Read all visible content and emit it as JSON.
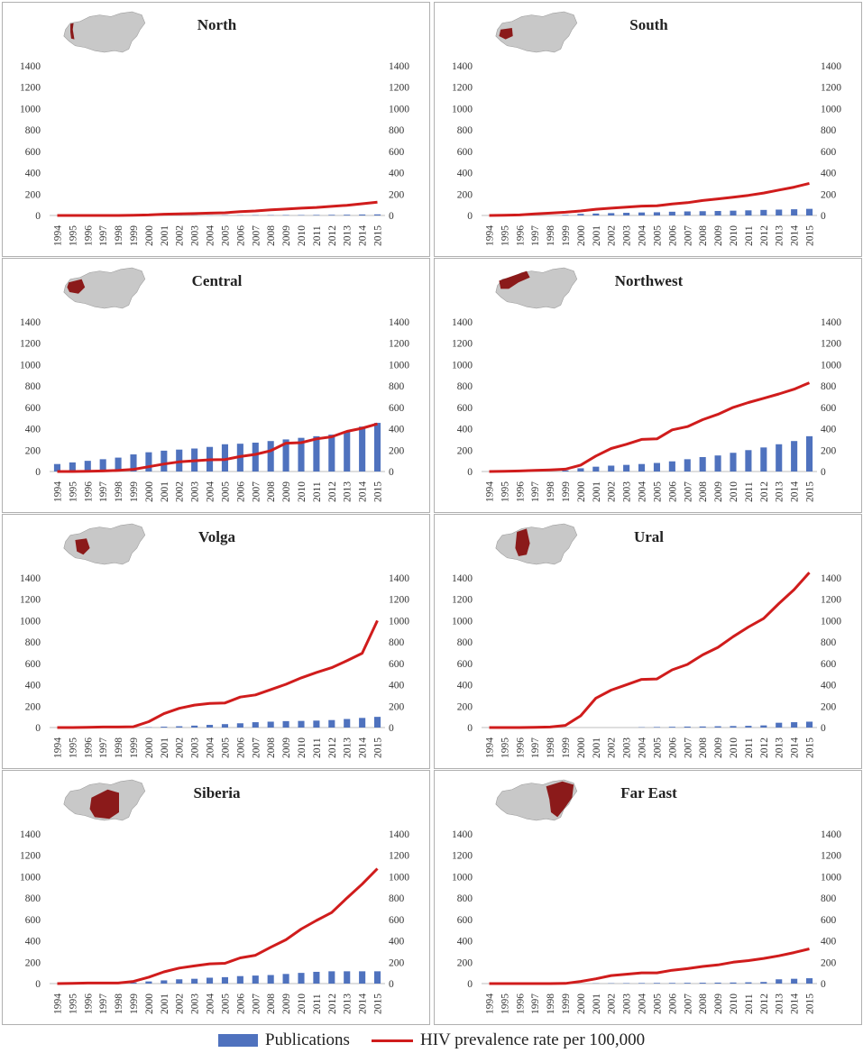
{
  "legend": {
    "publications": "Publications",
    "hiv": "HIV prevalence rate per 100,000"
  },
  "colors": {
    "bars": "#4f72be",
    "line": "#d01c1c",
    "map_land": "#c8c8c8",
    "map_highlight": "#8b1a1a",
    "grid_text": "#333333"
  },
  "chart_data": [
    {
      "type": "bar",
      "title": "North",
      "categories": [
        "1994",
        "1995",
        "1996",
        "1997",
        "1998",
        "1999",
        "2000",
        "2001",
        "2002",
        "2003",
        "2004",
        "2005",
        "2006",
        "2007",
        "2008",
        "2009",
        "2010",
        "2011",
        "2012",
        "2013",
        "2014",
        "2015"
      ],
      "ylim": [
        0,
        1400
      ],
      "yticks": [
        0,
        200,
        400,
        600,
        800,
        1000,
        1200,
        1400
      ],
      "series": [
        {
          "name": "Publications",
          "type": "bar",
          "values": [
            0,
            0,
            0,
            0,
            0,
            0,
            0,
            1,
            1,
            1,
            1,
            2,
            2,
            3,
            3,
            4,
            4,
            5,
            6,
            7,
            9,
            10
          ]
        },
        {
          "name": "HIV prevalence rate per 100,000",
          "type": "line",
          "values": [
            0,
            0,
            0,
            0,
            0,
            2,
            5,
            12,
            15,
            18,
            22,
            25,
            35,
            42,
            52,
            60,
            68,
            75,
            85,
            95,
            110,
            125
          ]
        }
      ]
    },
    {
      "type": "bar",
      "title": "South",
      "categories": [
        "1994",
        "1995",
        "1996",
        "1997",
        "1998",
        "1999",
        "2000",
        "2001",
        "2002",
        "2003",
        "2004",
        "2005",
        "2006",
        "2007",
        "2008",
        "2009",
        "2010",
        "2011",
        "2012",
        "2013",
        "2014",
        "2015"
      ],
      "ylim": [
        0,
        1400
      ],
      "yticks": [
        0,
        200,
        400,
        600,
        800,
        1000,
        1200,
        1400
      ],
      "series": [
        {
          "name": "Publications",
          "type": "bar",
          "values": [
            0,
            0,
            0,
            0,
            0,
            5,
            15,
            18,
            22,
            25,
            28,
            30,
            35,
            38,
            40,
            42,
            45,
            48,
            52,
            55,
            58,
            62
          ]
        },
        {
          "name": "HIV prevalence rate per 100,000",
          "type": "line",
          "values": [
            0,
            2,
            5,
            15,
            22,
            30,
            42,
            58,
            68,
            78,
            88,
            90,
            108,
            120,
            140,
            155,
            170,
            188,
            210,
            238,
            265,
            300
          ]
        }
      ]
    },
    {
      "type": "bar",
      "title": "Central",
      "categories": [
        "1994",
        "1995",
        "1996",
        "1997",
        "1998",
        "1999",
        "2000",
        "2001",
        "2002",
        "2003",
        "2004",
        "2005",
        "2006",
        "2007",
        "2008",
        "2009",
        "2010",
        "2011",
        "2012",
        "2013",
        "2014",
        "2015"
      ],
      "ylim": [
        0,
        1400
      ],
      "yticks": [
        0,
        200,
        400,
        600,
        800,
        1000,
        1200,
        1400
      ],
      "series": [
        {
          "name": "Publications",
          "type": "bar",
          "values": [
            70,
            85,
            100,
            115,
            130,
            160,
            180,
            195,
            205,
            215,
            230,
            255,
            260,
            270,
            285,
            300,
            315,
            330,
            345,
            375,
            420,
            455
          ]
        },
        {
          "name": "HIV prevalence rate per 100,000",
          "type": "line",
          "values": [
            0,
            0,
            2,
            5,
            10,
            20,
            45,
            70,
            90,
            100,
            110,
            112,
            140,
            160,
            195,
            265,
            270,
            305,
            325,
            375,
            405,
            445
          ]
        }
      ]
    },
    {
      "type": "bar",
      "title": "Northwest",
      "categories": [
        "1994",
        "1995",
        "1996",
        "1997",
        "1998",
        "1999",
        "2000",
        "2001",
        "2002",
        "2003",
        "2004",
        "2005",
        "2006",
        "2007",
        "2008",
        "2009",
        "2010",
        "2011",
        "2012",
        "2013",
        "2014",
        "2015"
      ],
      "ylim": [
        0,
        1400
      ],
      "yticks": [
        0,
        200,
        400,
        600,
        800,
        1000,
        1200,
        1400
      ],
      "series": [
        {
          "name": "Publications",
          "type": "bar",
          "values": [
            0,
            0,
            0,
            0,
            0,
            10,
            30,
            45,
            55,
            62,
            70,
            80,
            95,
            115,
            135,
            150,
            175,
            200,
            225,
            255,
            285,
            330
          ]
        },
        {
          "name": "HIV prevalence rate per 100,000",
          "type": "line",
          "values": [
            0,
            2,
            5,
            10,
            15,
            22,
            60,
            145,
            215,
            255,
            300,
            305,
            390,
            420,
            485,
            535,
            600,
            645,
            685,
            725,
            770,
            830
          ]
        }
      ]
    },
    {
      "type": "bar",
      "title": "Volga",
      "categories": [
        "1994",
        "1995",
        "1996",
        "1997",
        "1998",
        "1999",
        "2000",
        "2001",
        "2002",
        "2003",
        "2004",
        "2005",
        "2006",
        "2007",
        "2008",
        "2009",
        "2010",
        "2011",
        "2012",
        "2013",
        "2014",
        "2015"
      ],
      "ylim": [
        0,
        1400
      ],
      "yticks": [
        0,
        200,
        400,
        600,
        800,
        1000,
        1200,
        1400
      ],
      "series": [
        {
          "name": "Publications",
          "type": "bar",
          "values": [
            0,
            0,
            0,
            0,
            0,
            0,
            3,
            8,
            12,
            18,
            25,
            32,
            40,
            50,
            55,
            60,
            62,
            65,
            70,
            80,
            90,
            100
          ]
        },
        {
          "name": "HIV prevalence rate per 100,000",
          "type": "line",
          "values": [
            0,
            0,
            2,
            5,
            5,
            8,
            55,
            130,
            180,
            210,
            225,
            230,
            285,
            305,
            355,
            405,
            465,
            515,
            560,
            625,
            695,
            1000
          ]
        }
      ]
    },
    {
      "type": "bar",
      "title": "Ural",
      "categories": [
        "1994",
        "1995",
        "1996",
        "1997",
        "1998",
        "1999",
        "2000",
        "2001",
        "2002",
        "2003",
        "2004",
        "2005",
        "2006",
        "2007",
        "2008",
        "2009",
        "2010",
        "2011",
        "2012",
        "2013",
        "2014",
        "2015"
      ],
      "ylim": [
        0,
        1400
      ],
      "yticks": [
        0,
        200,
        400,
        600,
        800,
        1000,
        1200,
        1400
      ],
      "series": [
        {
          "name": "Publications",
          "type": "bar",
          "values": [
            0,
            0,
            0,
            0,
            0,
            0,
            0,
            0,
            0,
            0,
            3,
            5,
            7,
            9,
            10,
            12,
            14,
            16,
            20,
            45,
            50,
            55
          ]
        },
        {
          "name": "HIV prevalence rate per 100,000",
          "type": "line",
          "values": [
            0,
            0,
            0,
            2,
            5,
            20,
            110,
            275,
            350,
            400,
            450,
            455,
            540,
            590,
            680,
            750,
            850,
            940,
            1020,
            1160,
            1290,
            1450
          ]
        }
      ]
    },
    {
      "type": "bar",
      "title": "Siberia",
      "categories": [
        "1994",
        "1995",
        "1996",
        "1997",
        "1998",
        "1999",
        "2000",
        "2001",
        "2002",
        "2003",
        "2004",
        "2005",
        "2006",
        "2007",
        "2008",
        "2009",
        "2010",
        "2011",
        "2012",
        "2013",
        "2014",
        "2015"
      ],
      "ylim": [
        0,
        1400
      ],
      "yticks": [
        0,
        200,
        400,
        600,
        800,
        1000,
        1200,
        1400
      ],
      "series": [
        {
          "name": "Publications",
          "type": "bar",
          "values": [
            0,
            0,
            0,
            0,
            5,
            10,
            20,
            30,
            40,
            45,
            55,
            60,
            70,
            75,
            80,
            90,
            100,
            110,
            115,
            115,
            115,
            115
          ]
        },
        {
          "name": "HIV prevalence rate per 100,000",
          "type": "line",
          "values": [
            0,
            2,
            5,
            5,
            5,
            20,
            60,
            110,
            145,
            165,
            185,
            190,
            240,
            265,
            340,
            410,
            510,
            590,
            665,
            800,
            930,
            1075
          ]
        }
      ]
    },
    {
      "type": "bar",
      "title": "Far East",
      "categories": [
        "1994",
        "1995",
        "1996",
        "1997",
        "1998",
        "1999",
        "2000",
        "2001",
        "2002",
        "2003",
        "2004",
        "2005",
        "2006",
        "2007",
        "2008",
        "2009",
        "2010",
        "2011",
        "2012",
        "2013",
        "2014",
        "2015"
      ],
      "ylim": [
        0,
        1400
      ],
      "yticks": [
        0,
        200,
        400,
        600,
        800,
        1000,
        1200,
        1400
      ],
      "series": [
        {
          "name": "Publications",
          "type": "bar",
          "values": [
            0,
            0,
            0,
            0,
            0,
            0,
            0,
            2,
            3,
            4,
            5,
            6,
            6,
            7,
            8,
            9,
            10,
            12,
            15,
            40,
            45,
            50
          ]
        },
        {
          "name": "HIV prevalence rate per 100,000",
          "type": "line",
          "values": [
            0,
            0,
            0,
            0,
            0,
            2,
            20,
            45,
            75,
            88,
            100,
            100,
            125,
            140,
            160,
            175,
            200,
            215,
            235,
            260,
            290,
            325
          ]
        }
      ]
    }
  ]
}
